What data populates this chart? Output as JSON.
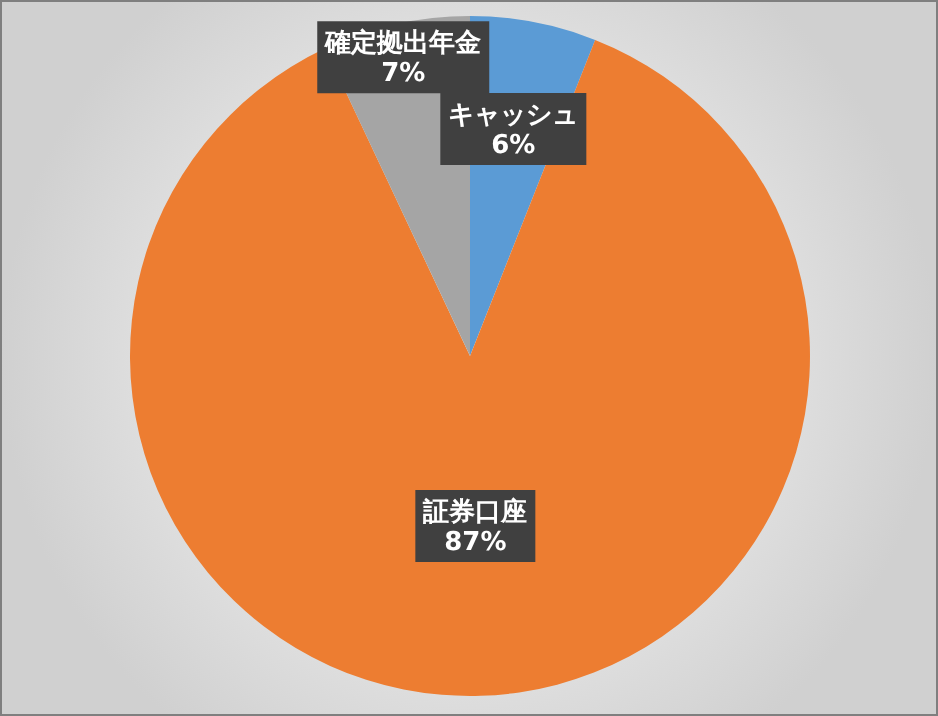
{
  "chart_data": {
    "type": "pie",
    "categories": [
      "キャッシュ",
      "証券口座",
      "確定拠出年金"
    ],
    "values": [
      6,
      87,
      7
    ],
    "colors": [
      "#5b9bd5",
      "#ed7d31",
      "#a5a5a5"
    ],
    "value_labels": [
      "6%",
      "87%",
      "7%"
    ]
  }
}
